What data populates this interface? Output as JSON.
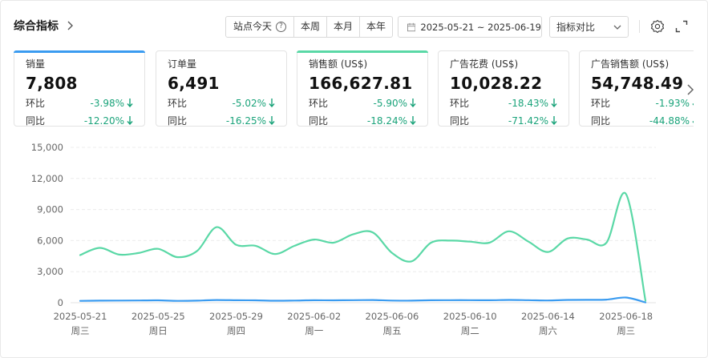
{
  "header": {
    "title": "综合指标"
  },
  "range_buttons": [
    {
      "label": "站点今天",
      "help": "?"
    },
    {
      "label": "本周"
    },
    {
      "label": "本月"
    },
    {
      "label": "本年"
    }
  ],
  "date_range": "2025-05-21 ~ 2025-06-19",
  "compare_select": {
    "value": "指标对比"
  },
  "icons": {
    "settings": "gear-icon",
    "expand": "expand-icon",
    "calendar": "calendar-icon"
  },
  "cards": [
    {
      "label": "销量",
      "value": "7,808",
      "accent": "#3a9bf0",
      "mom_label": "环比",
      "mom": "-3.98%",
      "yoy_label": "同比",
      "yoy": "-12.20%"
    },
    {
      "label": "订单量",
      "value": "6,491",
      "accent": null,
      "mom_label": "环比",
      "mom": "-5.02%",
      "yoy_label": "同比",
      "yoy": "-16.25%"
    },
    {
      "label": "销售额 (US$)",
      "value": "166,627.81",
      "accent": "#5ad8a6",
      "mom_label": "环比",
      "mom": "-5.90%",
      "yoy_label": "同比",
      "yoy": "-18.24%"
    },
    {
      "label": "广告花费 (US$)",
      "value": "10,028.22",
      "accent": null,
      "mom_label": "环比",
      "mom": "-18.43%",
      "yoy_label": "同比",
      "yoy": "-71.42%"
    },
    {
      "label": "广告销售额 (US$)",
      "value": "54,748.49",
      "accent": null,
      "mom_label": "环比",
      "mom": "-1.93%",
      "yoy_label": "同比",
      "yoy": "-44.88%"
    }
  ],
  "colors": {
    "positive_change": "#1aa37a",
    "series_sales": "#5ad8a6",
    "series_qty": "#3a9bf0"
  },
  "chart_data": {
    "type": "line",
    "ylim": [
      0,
      15000
    ],
    "yticks": [
      "15,000",
      "12,000",
      "9,000",
      "6,000",
      "3,000",
      "0"
    ],
    "ytick_values": [
      15000,
      12000,
      9000,
      6000,
      3000,
      0
    ],
    "x_tick_labels": [
      {
        "date": "2025-05-21",
        "weekday": "周三"
      },
      {
        "date": "2025-05-25",
        "weekday": "周日"
      },
      {
        "date": "2025-05-29",
        "weekday": "周四"
      },
      {
        "date": "2025-06-02",
        "weekday": "周一"
      },
      {
        "date": "2025-06-06",
        "weekday": "周五"
      },
      {
        "date": "2025-06-10",
        "weekday": "周二"
      },
      {
        "date": "2025-06-14",
        "weekday": "周六"
      },
      {
        "date": "2025-06-18",
        "weekday": "周三"
      }
    ],
    "x": [
      "2025-05-21",
      "2025-05-22",
      "2025-05-23",
      "2025-05-24",
      "2025-05-25",
      "2025-05-26",
      "2025-05-27",
      "2025-05-28",
      "2025-05-29",
      "2025-05-30",
      "2025-05-31",
      "2025-06-01",
      "2025-06-02",
      "2025-06-03",
      "2025-06-04",
      "2025-06-05",
      "2025-06-06",
      "2025-06-07",
      "2025-06-08",
      "2025-06-09",
      "2025-06-10",
      "2025-06-11",
      "2025-06-12",
      "2025-06-13",
      "2025-06-14",
      "2025-06-15",
      "2025-06-16",
      "2025-06-17",
      "2025-06-18",
      "2025-06-19"
    ],
    "series": [
      {
        "color": "#5ad8a6",
        "values": [
          4600,
          5300,
          4650,
          4800,
          5200,
          4400,
          5000,
          7300,
          5600,
          5500,
          4700,
          5500,
          6100,
          5800,
          6600,
          6800,
          4800,
          4000,
          5800,
          6000,
          5900,
          5800,
          6900,
          5900,
          4900,
          6200,
          6100,
          5800,
          10500,
          200
        ]
      },
      {
        "color": "#3a9bf0",
        "values": [
          180,
          200,
          210,
          220,
          230,
          180,
          200,
          260,
          240,
          230,
          190,
          210,
          240,
          230,
          250,
          260,
          210,
          200,
          240,
          250,
          250,
          240,
          270,
          250,
          220,
          270,
          280,
          300,
          500,
          30
        ]
      }
    ]
  }
}
